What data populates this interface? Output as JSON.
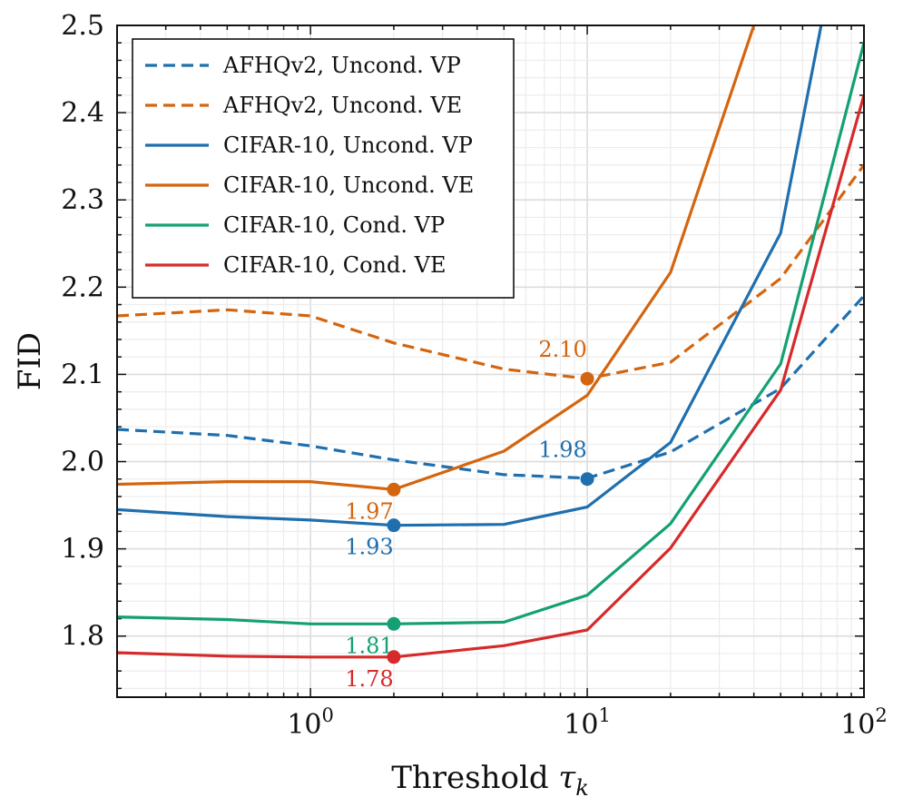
{
  "chart_data": {
    "type": "line",
    "title": "",
    "xlabel": "Threshold",
    "xlabel_symbol": "τ",
    "xlabel_subscript": "k",
    "ylabel": "FID",
    "xscale": "log",
    "xlim": [
      0.2,
      100
    ],
    "ylim": [
      1.73,
      2.5
    ],
    "grid": true,
    "legend_position": "top-left",
    "x_tick_labels": [
      {
        "value": 1,
        "base": "10",
        "exp": "0"
      },
      {
        "value": 10,
        "base": "10",
        "exp": "1"
      },
      {
        "value": 100,
        "base": "10",
        "exp": "2"
      }
    ],
    "y_ticks": [
      1.8,
      1.9,
      2.0,
      2.1,
      2.2,
      2.3,
      2.4,
      2.5
    ],
    "y_tick_labels": [
      "1.8",
      "1.9",
      "2.0",
      "2.1",
      "2.2",
      "2.3",
      "2.4",
      "2.5"
    ],
    "series": [
      {
        "name": "AFHQv2, Uncond. VP",
        "color": "#1f6fae",
        "dash": true,
        "x": [
          0.2,
          0.5,
          1,
          2,
          5,
          10,
          20,
          50,
          100
        ],
        "y": [
          2.037,
          2.03,
          2.018,
          2.002,
          1.985,
          1.981,
          2.011,
          2.084,
          2.19
        ],
        "marker": {
          "x": 10,
          "y": 1.98,
          "label": "1.98",
          "label_pos": "above"
        }
      },
      {
        "name": "AFHQv2, Uncond. VE",
        "color": "#d4650f",
        "dash": true,
        "x": [
          0.2,
          0.5,
          1,
          2,
          5,
          10,
          20,
          50,
          100
        ],
        "y": [
          2.167,
          2.174,
          2.167,
          2.136,
          2.106,
          2.095,
          2.114,
          2.21,
          2.34
        ],
        "marker": {
          "x": 10,
          "y": 2.095,
          "label": "2.10",
          "label_pos": "above"
        }
      },
      {
        "name": "CIFAR-10, Uncond. VP",
        "color": "#1f6fae",
        "dash": false,
        "x": [
          0.2,
          0.5,
          1,
          2,
          5,
          10,
          20,
          50,
          70
        ],
        "y": [
          1.945,
          1.937,
          1.933,
          1.927,
          1.928,
          1.948,
          2.022,
          2.262,
          2.5
        ],
        "marker": {
          "x": 2,
          "y": 1.927,
          "label": "1.93",
          "label_pos": "below"
        }
      },
      {
        "name": "CIFAR-10, Uncond. VE",
        "color": "#d4650f",
        "dash": false,
        "x": [
          0.2,
          0.5,
          1,
          2,
          5,
          10,
          20,
          40
        ],
        "y": [
          1.974,
          1.977,
          1.977,
          1.968,
          2.012,
          2.076,
          2.217,
          2.5
        ],
        "marker": {
          "x": 2,
          "y": 1.968,
          "label": "1.97",
          "label_pos": "below"
        }
      },
      {
        "name": "CIFAR-10, Cond. VP",
        "color": "#14a074",
        "dash": false,
        "x": [
          0.2,
          0.5,
          1,
          2,
          5,
          10,
          20,
          50,
          100
        ],
        "y": [
          1.822,
          1.819,
          1.814,
          1.814,
          1.816,
          1.847,
          1.929,
          2.112,
          2.48
        ],
        "marker": {
          "x": 2,
          "y": 1.814,
          "label": "1.81",
          "label_pos": "below"
        }
      },
      {
        "name": "CIFAR-10, Cond. VE",
        "color": "#d62a2a",
        "dash": false,
        "x": [
          0.2,
          0.5,
          1,
          2,
          5,
          10,
          20,
          50,
          100
        ],
        "y": [
          1.781,
          1.777,
          1.776,
          1.776,
          1.789,
          1.807,
          1.901,
          2.082,
          2.42
        ],
        "marker": {
          "x": 2,
          "y": 1.776,
          "label": "1.78",
          "label_pos": "below"
        }
      }
    ]
  }
}
